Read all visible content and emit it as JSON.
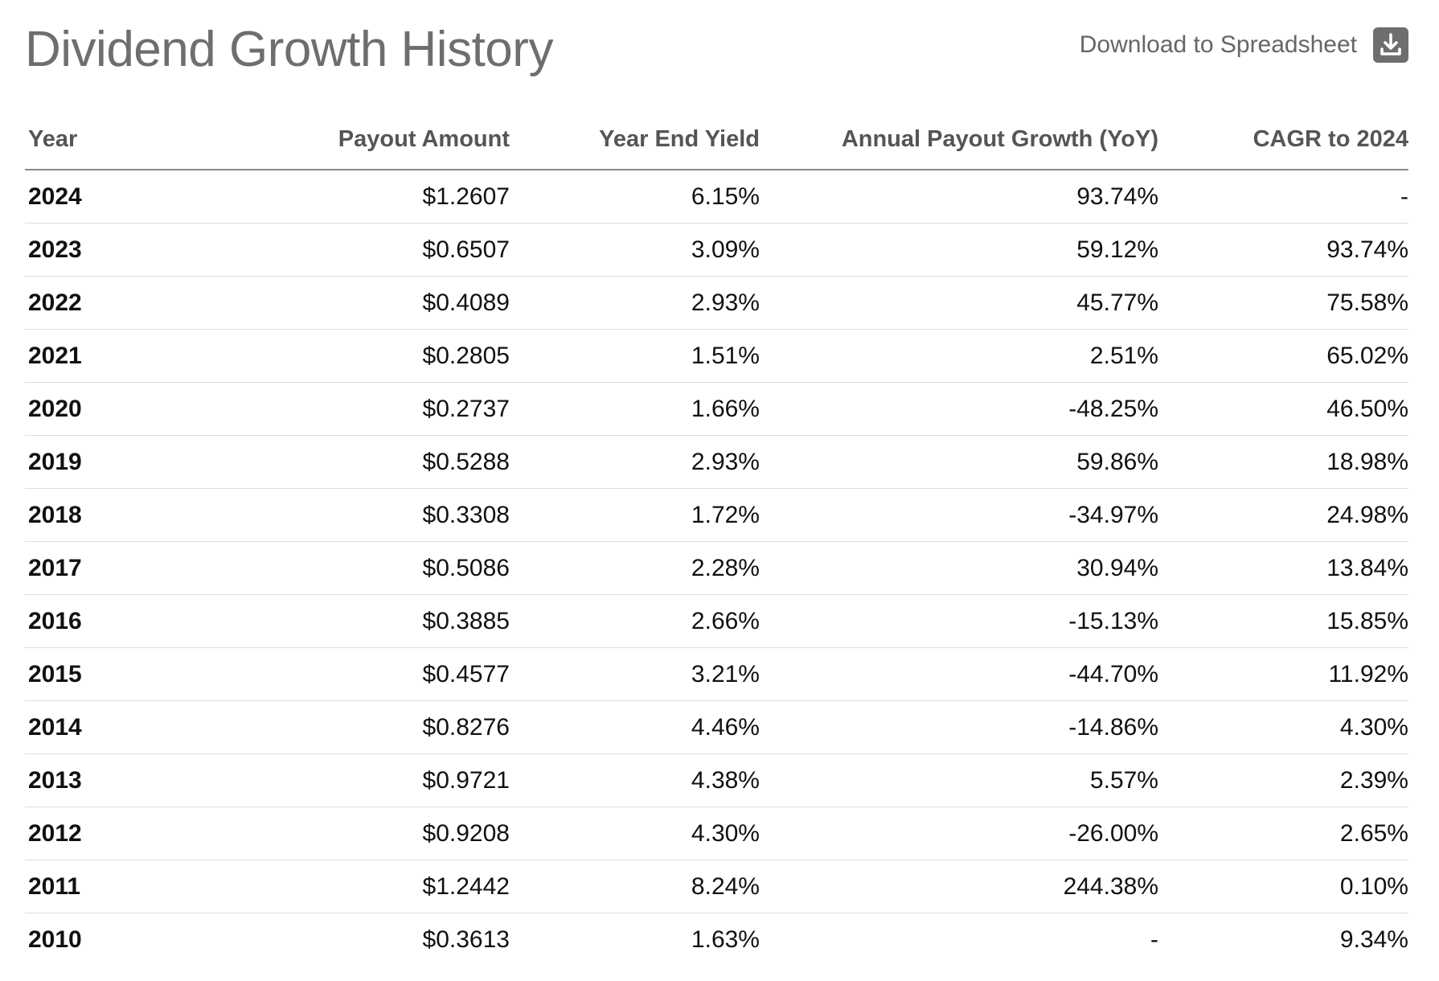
{
  "header": {
    "title": "Dividend Growth History",
    "download_label": "Download to Spreadsheet",
    "download_icon": "download-icon"
  },
  "table": {
    "columns": [
      "Year",
      "Payout Amount",
      "Year End Yield",
      "Annual Payout Growth (YoY)",
      "CAGR to 2024"
    ],
    "rows": [
      [
        "2024",
        "$1.2607",
        "6.15%",
        "93.74%",
        "-"
      ],
      [
        "2023",
        "$0.6507",
        "3.09%",
        "59.12%",
        "93.74%"
      ],
      [
        "2022",
        "$0.4089",
        "2.93%",
        "45.77%",
        "75.58%"
      ],
      [
        "2021",
        "$0.2805",
        "1.51%",
        "2.51%",
        "65.02%"
      ],
      [
        "2020",
        "$0.2737",
        "1.66%",
        "-48.25%",
        "46.50%"
      ],
      [
        "2019",
        "$0.5288",
        "2.93%",
        "59.86%",
        "18.98%"
      ],
      [
        "2018",
        "$0.3308",
        "1.72%",
        "-34.97%",
        "24.98%"
      ],
      [
        "2017",
        "$0.5086",
        "2.28%",
        "30.94%",
        "13.84%"
      ],
      [
        "2016",
        "$0.3885",
        "2.66%",
        "-15.13%",
        "15.85%"
      ],
      [
        "2015",
        "$0.4577",
        "3.21%",
        "-44.70%",
        "11.92%"
      ],
      [
        "2014",
        "$0.8276",
        "4.46%",
        "-14.86%",
        "4.30%"
      ],
      [
        "2013",
        "$0.9721",
        "4.38%",
        "5.57%",
        "2.39%"
      ],
      [
        "2012",
        "$0.9208",
        "4.30%",
        "-26.00%",
        "2.65%"
      ],
      [
        "2011",
        "$1.2442",
        "8.24%",
        "244.38%",
        "0.10%"
      ],
      [
        "2010",
        "$0.3613",
        "1.63%",
        "-",
        "9.34%"
      ]
    ]
  }
}
